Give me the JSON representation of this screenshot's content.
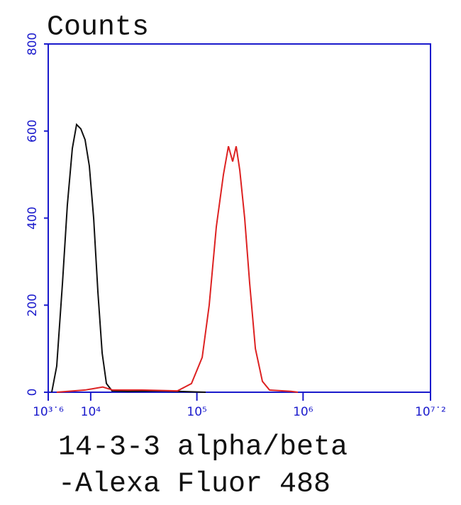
{
  "chart_data": {
    "type": "line",
    "y_label": "Counts",
    "x_label": [
      "14-3-3 alpha/beta",
      "-Alexa Fluor 488"
    ],
    "x_scale": "log",
    "xlim": [
      3981.07,
      15848931.92
    ],
    "xticks": [
      {
        "value": 3981.07,
        "label": "10³˙⁶"
      },
      {
        "value": 10000,
        "label": "10⁴"
      },
      {
        "value": 100000,
        "label": "10⁵"
      },
      {
        "value": 1000000,
        "label": "10⁶"
      },
      {
        "value": 15848931.92,
        "label": "10⁷˙²"
      }
    ],
    "ylim": [
      0,
      800
    ],
    "yticks": [
      0,
      200,
      400,
      600,
      800
    ],
    "axis_color": "#1a1acc",
    "series": [
      {
        "color": "#111111",
        "x": [
          4297,
          4786,
          5420,
          6026,
          6714,
          7362,
          8072,
          8851,
          9705,
          10660,
          11690,
          12820,
          14060,
          15890,
          22280,
          48080,
          121000
        ],
        "values": [
          0,
          60,
          250,
          430,
          560,
          615,
          605,
          580,
          520,
          400,
          230,
          90,
          20,
          3,
          2,
          3,
          0
        ]
      },
      {
        "color": "#dd2222",
        "x": [
          4786,
          8851,
          12990,
          16110,
          30340,
          65460,
          88900,
          112200,
          130600,
          152400,
          177800,
          198200,
          217300,
          234400,
          253500,
          281800,
          314100,
          355600,
          414000,
          483100,
          767400,
          893300
        ],
        "values": [
          0,
          5,
          12,
          5,
          5,
          3,
          20,
          80,
          200,
          380,
          500,
          565,
          530,
          565,
          510,
          400,
          250,
          100,
          25,
          5,
          2,
          0
        ]
      }
    ]
  }
}
